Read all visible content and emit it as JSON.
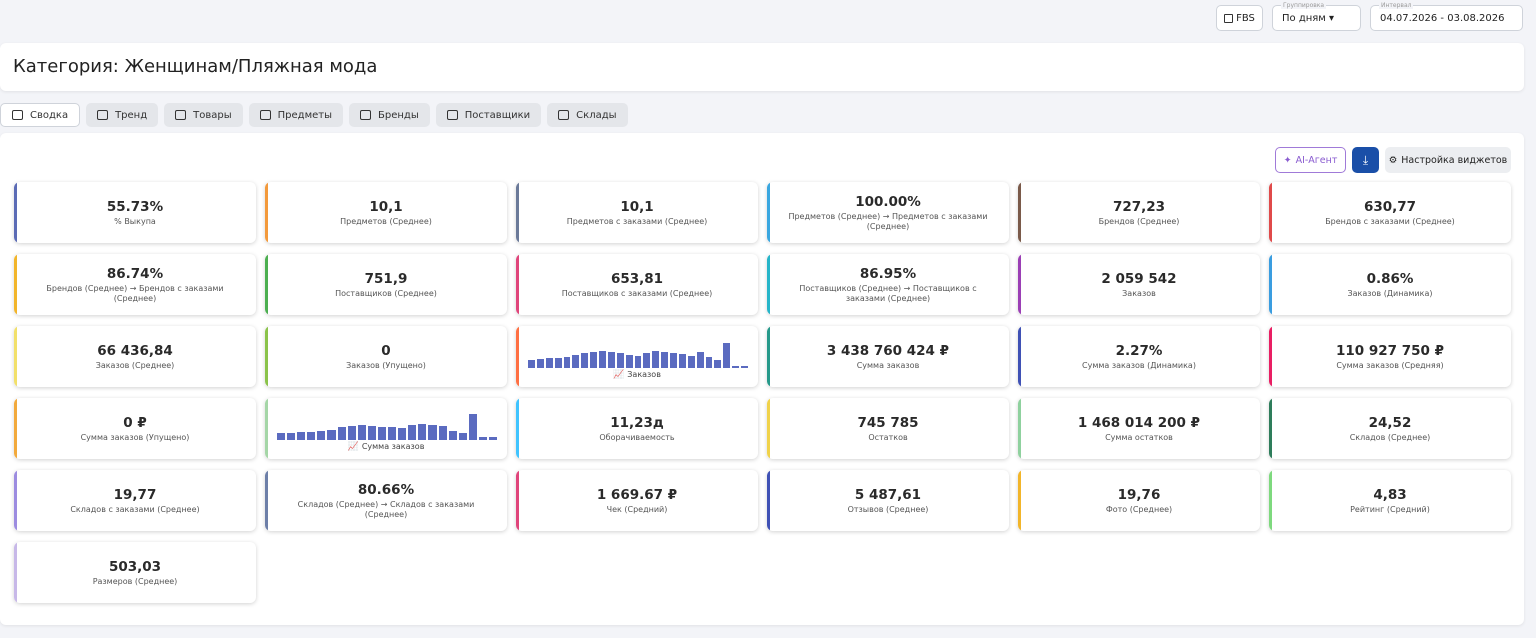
{
  "header": {
    "fbs": "FBS",
    "grouping_label": "Группировка",
    "grouping": "По дням",
    "interval_label": "Интервал",
    "interval": "04.07.2026 - 03.08.2026"
  },
  "title": "Категория: Женщинам/Пляжная мода",
  "tabs": [
    "Сводка",
    "Тренд",
    "Товары",
    "Предметы",
    "Бренды",
    "Поставщики",
    "Склады"
  ],
  "toolbar": {
    "ai": "AI-Агент",
    "settings": "Настройка виджетов"
  },
  "widgets": [
    {
      "value": "55.73%",
      "label": "% Выкупа",
      "color": "#5b6bb5"
    },
    {
      "value": "10,1",
      "label": "Предметов (Среднее)",
      "color": "#f39a3c"
    },
    {
      "value": "10,1",
      "label": "Предметов с заказами (Среднее)",
      "color": "#6b7a99"
    },
    {
      "value": "100.00%",
      "label": "Предметов (Среднее) → Предметов с заказами (Среднее)",
      "color": "#3aa7e0"
    },
    {
      "value": "727,23",
      "label": "Брендов (Среднее)",
      "color": "#7a5a4a"
    },
    {
      "value": "630,77",
      "label": "Брендов с заказами (Среднее)",
      "color": "#e04a4a"
    },
    {
      "value": "86.74%",
      "label": "Брендов (Среднее) → Брендов с заказами (Среднее)",
      "color": "#f2b52a"
    },
    {
      "value": "751,9",
      "label": "Поставщиков (Среднее)",
      "color": "#4caf50"
    },
    {
      "value": "653,81",
      "label": "Поставщиков с заказами (Среднее)",
      "color": "#e0457b"
    },
    {
      "value": "86.95%",
      "label": "Поставщиков (Среднее) → Поставщиков с заказами (Среднее)",
      "color": "#26b5c9"
    },
    {
      "value": "2 059 542",
      "label": "Заказов",
      "color": "#9b3fb5"
    },
    {
      "value": "0.86%",
      "label": "Заказов (Динамика)",
      "color": "#3a9de0"
    },
    {
      "value": "66 436,84",
      "label": "Заказов (Среднее)",
      "color": "#f2e06a"
    },
    {
      "value": "0",
      "label": "Заказов (Упущено)",
      "color": "#8bc34a"
    },
    {
      "type": "chart",
      "label": "Заказов",
      "color": "#ff7043",
      "bar_color": "#5b6bc0",
      "values": [
        8,
        9,
        10,
        10,
        11,
        13,
        15,
        16,
        17,
        16,
        15,
        13,
        12,
        15,
        17,
        16,
        15,
        14,
        12,
        16,
        11,
        8,
        25,
        2,
        2
      ]
    },
    {
      "value": "3 438 760 424 ₽",
      "label": "Сумма заказов",
      "color": "#26998a"
    },
    {
      "value": "2.27%",
      "label": "Сумма заказов (Динамика)",
      "color": "#3f51b5"
    },
    {
      "value": "110 927 750 ₽",
      "label": "Сумма заказов (Средняя)",
      "color": "#e91e63"
    },
    {
      "value": "0 ₽",
      "label": "Сумма заказов (Упущено)",
      "color": "#f2a93b"
    },
    {
      "type": "chart",
      "label": "Сумма заказов",
      "color": "#a5d6a7",
      "bar_color": "#5b6bc0",
      "values": [
        7,
        7,
        8,
        8,
        9,
        10,
        13,
        14,
        15,
        14,
        13,
        13,
        12,
        15,
        16,
        15,
        14,
        9,
        7,
        26,
        3,
        3
      ]
    },
    {
      "value": "11,23д",
      "label": "Оборачиваемость",
      "color": "#40c4ff"
    },
    {
      "value": "745 785",
      "label": "Остатков",
      "color": "#f0d24a"
    },
    {
      "value": "1 468 014 200 ₽",
      "label": "Сумма остатков",
      "color": "#8fd19e"
    },
    {
      "value": "24,52",
      "label": "Складов (Среднее)",
      "color": "#2e7d5b"
    },
    {
      "value": "19,77",
      "label": "Складов с заказами (Среднее)",
      "color": "#9c8ce0"
    },
    {
      "value": "80.66%",
      "label": "Складов (Среднее) → Складов с заказами (Среднее)",
      "color": "#6d7fa8"
    },
    {
      "value": "1 669.67 ₽",
      "label": "Чек (Средний)",
      "color": "#e0457b"
    },
    {
      "value": "5 487,61",
      "label": "Отзывов (Среднее)",
      "color": "#3f51b5"
    },
    {
      "value": "19,76",
      "label": "Фото (Среднее)",
      "color": "#f2b52a"
    },
    {
      "value": "4,83",
      "label": "Рейтинг (Средний)",
      "color": "#7ed97e"
    },
    {
      "value": "503,03",
      "label": "Размеров (Среднее)",
      "color": "#c7b8e8"
    }
  ]
}
